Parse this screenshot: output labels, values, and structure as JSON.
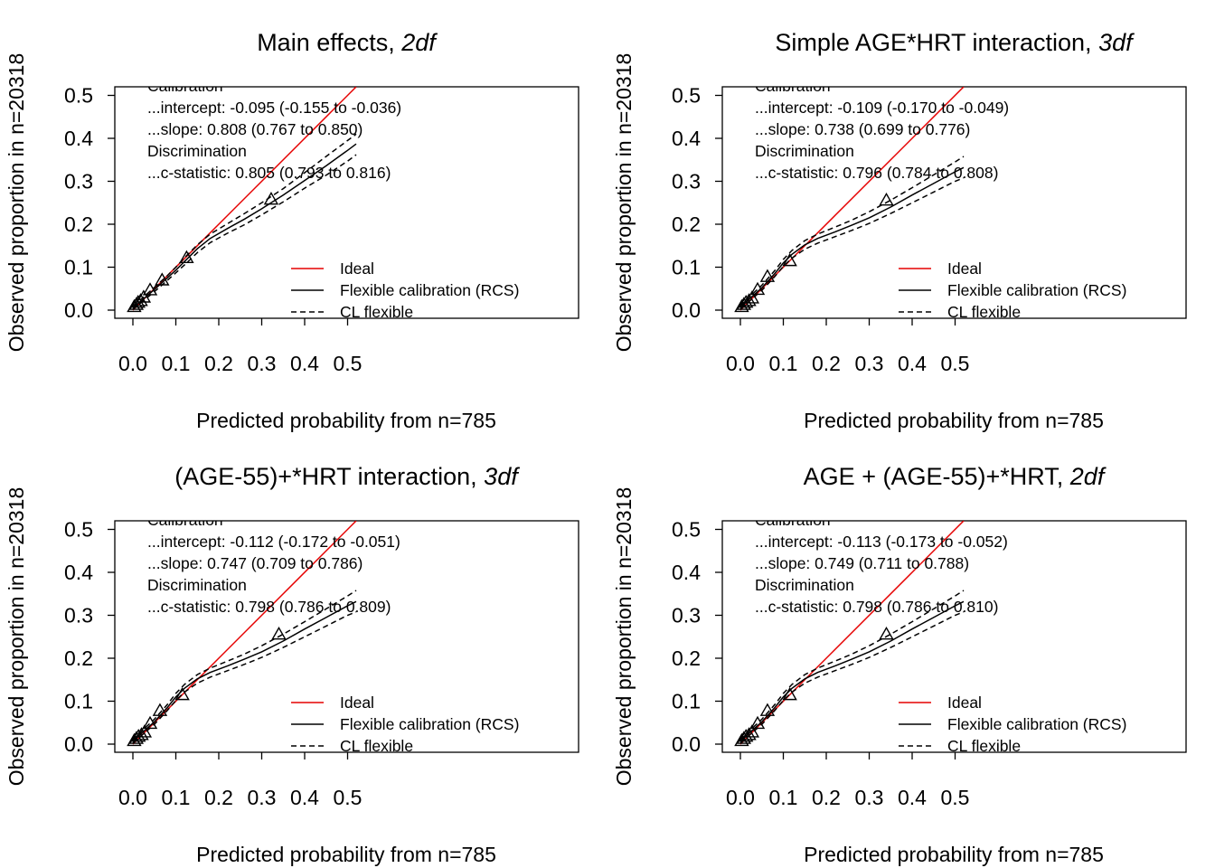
{
  "chart_data": [
    {
      "type": "line",
      "title": "Main effects, ",
      "title_italic": "2df",
      "xlabel": "Predicted probability from n=785",
      "ylabel": "Observed proportion in n=20318",
      "xlim": [
        0,
        0.52
      ],
      "ylim": [
        0,
        0.52
      ],
      "x_ticks": [
        "0.0",
        "0.1",
        "0.2",
        "0.3",
        "0.4",
        "0.5"
      ],
      "y_ticks": [
        "0.0",
        "0.1",
        "0.2",
        "0.3",
        "0.4",
        "0.5"
      ],
      "stats": [
        "Calibration",
        "...intercept: -0.095 (-0.155 to -0.036)",
        "...slope: 0.808 (0.767 to 0.850)",
        "Discrimination",
        "...c-statistic: 0.805 (0.793 to 0.816)"
      ],
      "legend": [
        "Ideal",
        "Flexible calibration (RCS)",
        "CL flexible"
      ],
      "legend_position": "bottom-right",
      "colors": {
        "ideal": "#e60000",
        "flexible": "#000000",
        "cl": "#000000"
      },
      "series": [
        {
          "name": "Ideal",
          "x": [
            0,
            0.52
          ],
          "y": [
            0,
            0.52
          ]
        },
        {
          "name": "Flexible calibration (RCS)",
          "x": [
            0.0,
            0.02,
            0.05,
            0.08,
            0.1,
            0.12,
            0.15,
            0.18,
            0.22,
            0.26,
            0.3,
            0.35,
            0.4,
            0.45,
            0.5,
            0.52
          ],
          "y": [
            0.005,
            0.022,
            0.048,
            0.075,
            0.093,
            0.113,
            0.143,
            0.167,
            0.19,
            0.212,
            0.236,
            0.268,
            0.302,
            0.336,
            0.372,
            0.387
          ]
        },
        {
          "name": "CL flexible",
          "x": [
            0.0,
            0.02,
            0.05,
            0.08,
            0.1,
            0.12,
            0.15,
            0.18,
            0.22,
            0.26,
            0.3,
            0.35,
            0.4,
            0.45,
            0.5,
            0.52
          ],
          "y": [
            0.009,
            0.026,
            0.053,
            0.08,
            0.1,
            0.122,
            0.152,
            0.177,
            0.201,
            0.225,
            0.25,
            0.283,
            0.32,
            0.358,
            0.395,
            0.41
          ]
        },
        {
          "name": "CL flexible",
          "x": [
            0.0,
            0.02,
            0.05,
            0.08,
            0.1,
            0.12,
            0.15,
            0.18,
            0.22,
            0.26,
            0.3,
            0.35,
            0.4,
            0.45,
            0.5,
            0.52
          ],
          "y": [
            0.002,
            0.018,
            0.043,
            0.069,
            0.087,
            0.105,
            0.134,
            0.157,
            0.179,
            0.199,
            0.222,
            0.252,
            0.284,
            0.314,
            0.347,
            0.362
          ]
        }
      ],
      "groups": {
        "x": [
          0.003,
          0.008,
          0.012,
          0.018,
          0.025,
          0.04,
          0.068,
          0.125,
          0.322
        ],
        "y": [
          0.008,
          0.013,
          0.018,
          0.022,
          0.03,
          0.047,
          0.07,
          0.122,
          0.258
        ]
      }
    },
    {
      "type": "line",
      "title": "Simple AGE*HRT interaction, ",
      "title_italic": "3df",
      "xlabel": "Predicted probability from n=785",
      "ylabel": "Observed proportion in n=20318",
      "xlim": [
        0,
        0.52
      ],
      "ylim": [
        0,
        0.52
      ],
      "x_ticks": [
        "0.0",
        "0.1",
        "0.2",
        "0.3",
        "0.4",
        "0.5"
      ],
      "y_ticks": [
        "0.0",
        "0.1",
        "0.2",
        "0.3",
        "0.4",
        "0.5"
      ],
      "stats": [
        "Calibration",
        "...intercept: -0.109 (-0.170 to -0.049)",
        "...slope: 0.738 (0.699 to 0.776)",
        "Discrimination",
        "...c-statistic: 0.796 (0.784 to 0.808)"
      ],
      "legend": [
        "Ideal",
        "Flexible calibration (RCS)",
        "CL flexible"
      ],
      "legend_position": "bottom-right",
      "colors": {
        "ideal": "#e60000",
        "flexible": "#000000",
        "cl": "#000000"
      },
      "series": [
        {
          "name": "Ideal",
          "x": [
            0,
            0.52
          ],
          "y": [
            0,
            0.52
          ]
        },
        {
          "name": "Flexible calibration (RCS)",
          "x": [
            0.0,
            0.02,
            0.05,
            0.08,
            0.1,
            0.12,
            0.15,
            0.18,
            0.22,
            0.26,
            0.3,
            0.35,
            0.4,
            0.45,
            0.5,
            0.52
          ],
          "y": [
            0.005,
            0.025,
            0.052,
            0.085,
            0.11,
            0.13,
            0.152,
            0.167,
            0.182,
            0.198,
            0.215,
            0.24,
            0.268,
            0.295,
            0.322,
            0.332
          ]
        },
        {
          "name": "CL flexible",
          "x": [
            0.0,
            0.02,
            0.05,
            0.08,
            0.1,
            0.12,
            0.15,
            0.18,
            0.22,
            0.26,
            0.3,
            0.35,
            0.4,
            0.45,
            0.5,
            0.52
          ],
          "y": [
            0.009,
            0.03,
            0.058,
            0.092,
            0.118,
            0.139,
            0.162,
            0.177,
            0.193,
            0.21,
            0.229,
            0.256,
            0.285,
            0.315,
            0.345,
            0.358
          ]
        },
        {
          "name": "CL flexible",
          "x": [
            0.0,
            0.02,
            0.05,
            0.08,
            0.1,
            0.12,
            0.15,
            0.18,
            0.22,
            0.26,
            0.3,
            0.35,
            0.4,
            0.45,
            0.5,
            0.52
          ],
          "y": [
            0.002,
            0.02,
            0.046,
            0.078,
            0.102,
            0.121,
            0.142,
            0.156,
            0.171,
            0.186,
            0.202,
            0.225,
            0.25,
            0.275,
            0.3,
            0.308
          ]
        }
      ],
      "groups": {
        "x": [
          0.003,
          0.008,
          0.013,
          0.02,
          0.027,
          0.04,
          0.063,
          0.115,
          0.34
        ],
        "y": [
          0.008,
          0.013,
          0.018,
          0.022,
          0.028,
          0.048,
          0.078,
          0.115,
          0.256
        ]
      }
    },
    {
      "type": "line",
      "title": "(AGE-55)+*HRT interaction, ",
      "title_italic": "3df",
      "xlabel": "Predicted probability from n=785",
      "ylabel": "Observed proportion in n=20318",
      "xlim": [
        0,
        0.52
      ],
      "ylim": [
        0,
        0.52
      ],
      "x_ticks": [
        "0.0",
        "0.1",
        "0.2",
        "0.3",
        "0.4",
        "0.5"
      ],
      "y_ticks": [
        "0.0",
        "0.1",
        "0.2",
        "0.3",
        "0.4",
        "0.5"
      ],
      "stats": [
        "Calibration",
        "...intercept: -0.112 (-0.172 to -0.051)",
        "...slope: 0.747 (0.709 to 0.786)",
        "Discrimination",
        "...c-statistic: 0.798 (0.786 to 0.809)"
      ],
      "legend": [
        "Ideal",
        "Flexible calibration (RCS)",
        "CL flexible"
      ],
      "legend_position": "bottom-right",
      "colors": {
        "ideal": "#e60000",
        "flexible": "#000000",
        "cl": "#000000"
      },
      "series": [
        {
          "name": "Ideal",
          "x": [
            0,
            0.52
          ],
          "y": [
            0,
            0.52
          ]
        },
        {
          "name": "Flexible calibration (RCS)",
          "x": [
            0.0,
            0.02,
            0.05,
            0.08,
            0.1,
            0.12,
            0.15,
            0.18,
            0.22,
            0.26,
            0.3,
            0.35,
            0.4,
            0.45,
            0.5,
            0.52
          ],
          "y": [
            0.005,
            0.025,
            0.052,
            0.085,
            0.11,
            0.13,
            0.152,
            0.167,
            0.182,
            0.198,
            0.215,
            0.24,
            0.268,
            0.295,
            0.322,
            0.332
          ]
        },
        {
          "name": "CL flexible",
          "x": [
            0.0,
            0.02,
            0.05,
            0.08,
            0.1,
            0.12,
            0.15,
            0.18,
            0.22,
            0.26,
            0.3,
            0.35,
            0.4,
            0.45,
            0.5,
            0.52
          ],
          "y": [
            0.009,
            0.03,
            0.058,
            0.092,
            0.118,
            0.139,
            0.162,
            0.177,
            0.193,
            0.21,
            0.229,
            0.256,
            0.285,
            0.315,
            0.345,
            0.358
          ]
        },
        {
          "name": "CL flexible",
          "x": [
            0.0,
            0.02,
            0.05,
            0.08,
            0.1,
            0.12,
            0.15,
            0.18,
            0.22,
            0.26,
            0.3,
            0.35,
            0.4,
            0.45,
            0.5,
            0.52
          ],
          "y": [
            0.002,
            0.02,
            0.046,
            0.078,
            0.102,
            0.121,
            0.142,
            0.156,
            0.171,
            0.186,
            0.202,
            0.225,
            0.25,
            0.275,
            0.3,
            0.308
          ]
        }
      ],
      "groups": {
        "x": [
          0.003,
          0.008,
          0.013,
          0.02,
          0.027,
          0.04,
          0.063,
          0.115,
          0.34
        ],
        "y": [
          0.008,
          0.013,
          0.018,
          0.022,
          0.028,
          0.048,
          0.078,
          0.115,
          0.256
        ]
      }
    },
    {
      "type": "line",
      "title": "AGE + (AGE-55)+*HRT, ",
      "title_italic": "2df",
      "xlabel": "Predicted probability from n=785",
      "ylabel": "Observed proportion in n=20318",
      "xlim": [
        0,
        0.52
      ],
      "ylim": [
        0,
        0.52
      ],
      "x_ticks": [
        "0.0",
        "0.1",
        "0.2",
        "0.3",
        "0.4",
        "0.5"
      ],
      "y_ticks": [
        "0.0",
        "0.1",
        "0.2",
        "0.3",
        "0.4",
        "0.5"
      ],
      "stats": [
        "Calibration",
        "...intercept: -0.113 (-0.173 to -0.052)",
        "...slope: 0.749 (0.711 to 0.788)",
        "Discrimination",
        "...c-statistic: 0.798 (0.786 to 0.810)"
      ],
      "legend": [
        "Ideal",
        "Flexible calibration (RCS)",
        "CL flexible"
      ],
      "legend_position": "bottom-right",
      "colors": {
        "ideal": "#e60000",
        "flexible": "#000000",
        "cl": "#000000"
      },
      "series": [
        {
          "name": "Ideal",
          "x": [
            0,
            0.52
          ],
          "y": [
            0,
            0.52
          ]
        },
        {
          "name": "Flexible calibration (RCS)",
          "x": [
            0.0,
            0.02,
            0.05,
            0.08,
            0.1,
            0.12,
            0.15,
            0.18,
            0.22,
            0.26,
            0.3,
            0.35,
            0.4,
            0.45,
            0.5,
            0.52
          ],
          "y": [
            0.005,
            0.025,
            0.052,
            0.085,
            0.11,
            0.13,
            0.152,
            0.167,
            0.182,
            0.198,
            0.215,
            0.24,
            0.268,
            0.295,
            0.322,
            0.332
          ]
        },
        {
          "name": "CL flexible",
          "x": [
            0.0,
            0.02,
            0.05,
            0.08,
            0.1,
            0.12,
            0.15,
            0.18,
            0.22,
            0.26,
            0.3,
            0.35,
            0.4,
            0.45,
            0.5,
            0.52
          ],
          "y": [
            0.009,
            0.03,
            0.058,
            0.092,
            0.118,
            0.139,
            0.162,
            0.177,
            0.193,
            0.21,
            0.229,
            0.256,
            0.285,
            0.315,
            0.345,
            0.358
          ]
        },
        {
          "name": "CL flexible",
          "x": [
            0.0,
            0.02,
            0.05,
            0.08,
            0.1,
            0.12,
            0.15,
            0.18,
            0.22,
            0.26,
            0.3,
            0.35,
            0.4,
            0.45,
            0.5,
            0.52
          ],
          "y": [
            0.002,
            0.02,
            0.046,
            0.078,
            0.102,
            0.121,
            0.142,
            0.156,
            0.171,
            0.186,
            0.202,
            0.225,
            0.25,
            0.275,
            0.3,
            0.308
          ]
        }
      ],
      "groups": {
        "x": [
          0.003,
          0.008,
          0.013,
          0.02,
          0.027,
          0.04,
          0.063,
          0.115,
          0.34
        ],
        "y": [
          0.008,
          0.013,
          0.018,
          0.022,
          0.028,
          0.048,
          0.078,
          0.115,
          0.256
        ]
      }
    }
  ]
}
